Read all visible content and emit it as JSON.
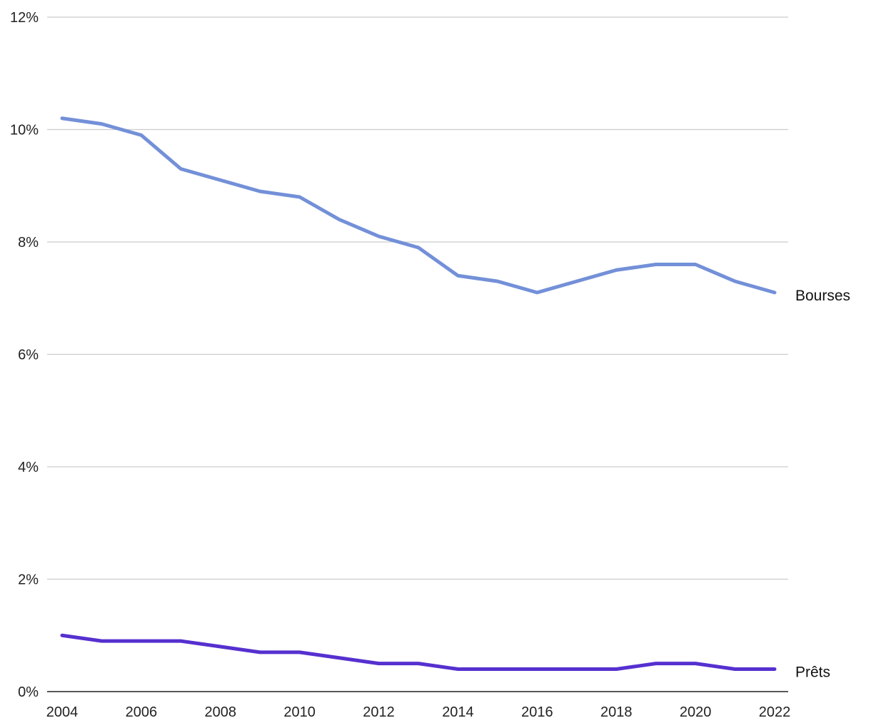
{
  "chart_data": {
    "type": "line",
    "title": "",
    "xlabel": "",
    "ylabel": "",
    "x": [
      2004,
      2005,
      2006,
      2007,
      2008,
      2009,
      2010,
      2011,
      2012,
      2013,
      2014,
      2015,
      2016,
      2017,
      2018,
      2019,
      2020,
      2021,
      2022
    ],
    "x_ticks": [
      "2004",
      "2006",
      "2008",
      "2010",
      "2012",
      "2014",
      "2016",
      "2018",
      "2020",
      "2022"
    ],
    "y_ticks": [
      "0%",
      "2%",
      "4%",
      "6%",
      "8%",
      "10%",
      "12%"
    ],
    "ylim": [
      0,
      12
    ],
    "xlim": [
      2004,
      2022
    ],
    "grid": true,
    "series": [
      {
        "name": "Bourses",
        "color": "#7390d8",
        "values": [
          10.2,
          10.1,
          9.9,
          9.3,
          9.1,
          8.9,
          8.8,
          8.4,
          8.1,
          7.9,
          7.4,
          7.3,
          7.1,
          7.3,
          7.5,
          7.6,
          7.6,
          7.3,
          7.1
        ]
      },
      {
        "name": "Prêts",
        "color": "#5630cf",
        "values": [
          1.0,
          0.9,
          0.9,
          0.9,
          0.8,
          0.7,
          0.7,
          0.6,
          0.5,
          0.5,
          0.4,
          0.4,
          0.4,
          0.4,
          0.4,
          0.5,
          0.5,
          0.4,
          0.4
        ]
      }
    ]
  }
}
